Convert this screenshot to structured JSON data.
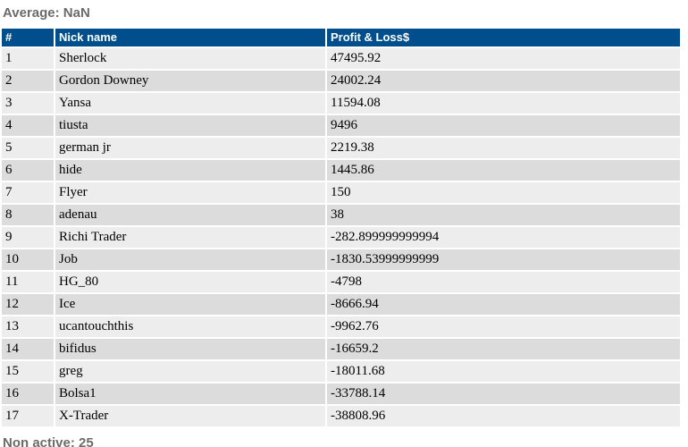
{
  "page": {
    "average_label": "Average: NaN",
    "non_active_label": "Non active: 25"
  },
  "table": {
    "columns": [
      "#",
      "Nick name",
      "Profit & Loss$"
    ],
    "rows": [
      {
        "rank": "1",
        "nick": "Sherlock",
        "pnl": "47495.92"
      },
      {
        "rank": "2",
        "nick": "Gordon Downey",
        "pnl": "24002.24"
      },
      {
        "rank": "3",
        "nick": "Yansa",
        "pnl": "11594.08"
      },
      {
        "rank": "4",
        "nick": "tiusta",
        "pnl": "9496"
      },
      {
        "rank": "5",
        "nick": "german jr",
        "pnl": "2219.38"
      },
      {
        "rank": "6",
        "nick": "hide",
        "pnl": "1445.86"
      },
      {
        "rank": "7",
        "nick": "Flyer",
        "pnl": "150"
      },
      {
        "rank": "8",
        "nick": "adenau",
        "pnl": "38"
      },
      {
        "rank": "9",
        "nick": "Richi Trader",
        "pnl": "-282.899999999994"
      },
      {
        "rank": "10",
        "nick": "Job",
        "pnl": "-1830.53999999999"
      },
      {
        "rank": "11",
        "nick": "HG_80",
        "pnl": "-4798"
      },
      {
        "rank": "12",
        "nick": "Ice",
        "pnl": "-8666.94"
      },
      {
        "rank": "13",
        "nick": "ucantouchthis",
        "pnl": "-9962.76"
      },
      {
        "rank": "14",
        "nick": "bifidus",
        "pnl": "-16659.2"
      },
      {
        "rank": "15",
        "nick": "greg",
        "pnl": "-18011.68"
      },
      {
        "rank": "16",
        "nick": "Bolsa1",
        "pnl": "-33788.14"
      },
      {
        "rank": "17",
        "nick": "X-Trader",
        "pnl": "-38808.96"
      }
    ]
  },
  "colors": {
    "header_bg": "#004f8c",
    "header_text": "#ffffff",
    "row_odd_bg": "#ededed",
    "row_even_bg": "#dcdcdc",
    "caption_text": "#6b6b6b",
    "body_text": "#000000"
  }
}
